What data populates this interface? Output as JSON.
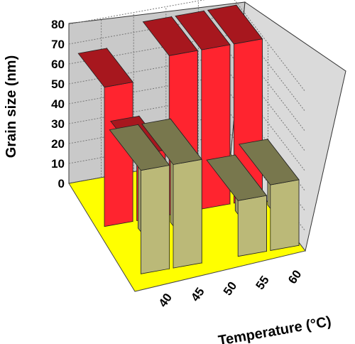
{
  "chart_data": {
    "type": "bar",
    "subtype": "3d-bar-two-rows",
    "xlabel": "Temperature (°C)",
    "ylabel": "Grain size (nm)",
    "categories": [
      "40",
      "45",
      "50",
      "55",
      "60"
    ],
    "ylim": [
      0,
      80
    ],
    "yticks": [
      "0",
      "10",
      "20",
      "30",
      "40",
      "50",
      "60",
      "70",
      "80"
    ],
    "grid": true,
    "series": [
      {
        "values": [
          70,
          33,
          80,
          80,
          80
        ],
        "color": "#e8202a"
      },
      {
        "values": [
          52,
          52,
          0,
          28,
          33
        ],
        "color": "#a7a56b"
      }
    ],
    "floor_color": "#ffff00",
    "wall_color": "#c8c8c8"
  }
}
